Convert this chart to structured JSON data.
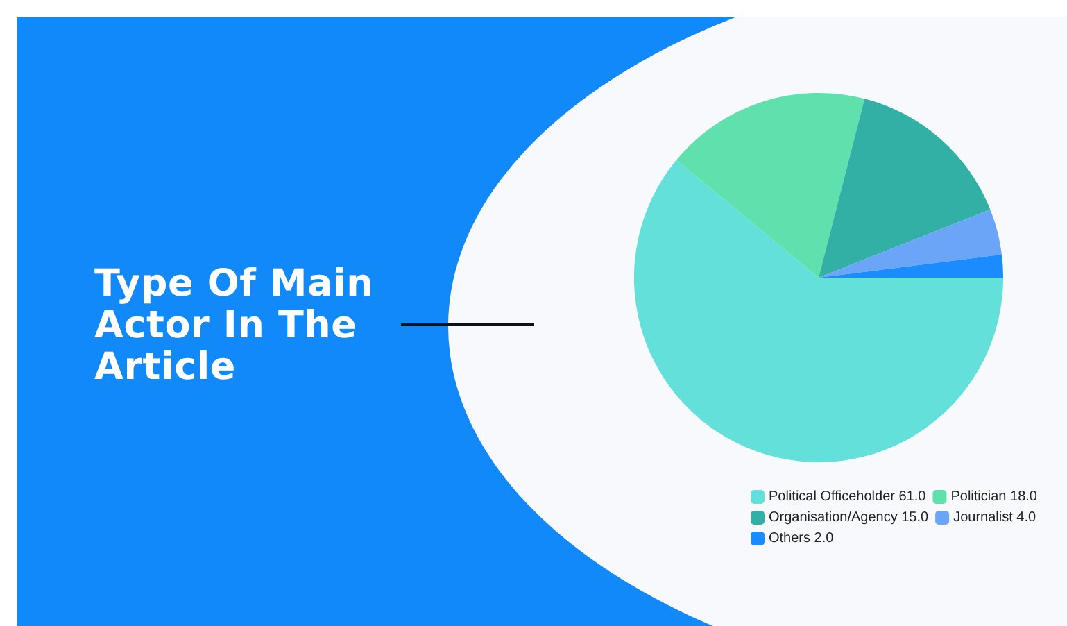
{
  "chart_data": {
    "type": "pie",
    "title": "Type Of Main Actor In The Article",
    "categories": [
      "Political Officeholder",
      "Politician",
      "Organisation/Agency",
      "Journalist",
      "Others"
    ],
    "values": [
      61,
      18,
      15,
      4,
      2
    ],
    "value_labels": [
      "61.0",
      "18.0",
      "15.0",
      "4.0",
      "2.0"
    ],
    "colors": [
      "#62e0d9",
      "#5fe0ad",
      "#33b0a6",
      "#6aa5f7",
      "#1a8cff"
    ],
    "legend": "bottom right"
  }
}
